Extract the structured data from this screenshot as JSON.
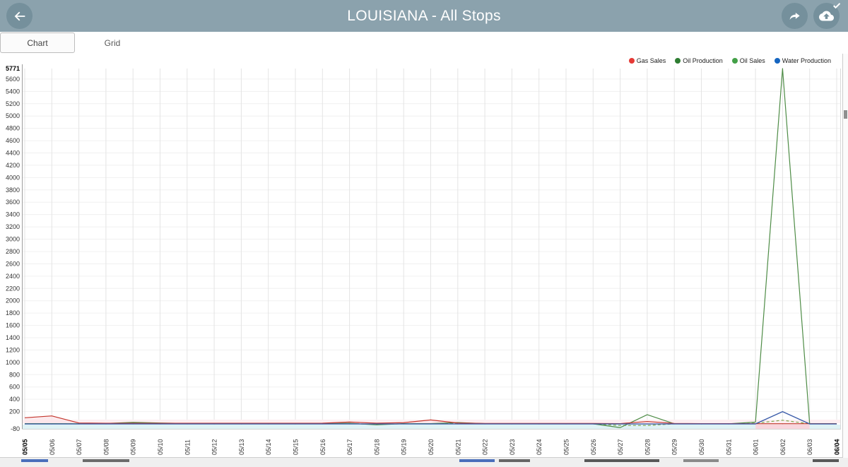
{
  "header": {
    "title": "LOUISIANA - All Stops",
    "bg_color": "#8ba2ad",
    "button_color": "#75909c",
    "icons": {
      "back": "arrow-left",
      "share": "forward-arrow",
      "upload": "cloud-upload-with-check"
    }
  },
  "tabs": [
    {
      "label": "Chart",
      "selected": true
    },
    {
      "label": "Grid",
      "selected": false
    }
  ],
  "legend": [
    {
      "label": "Gas Sales",
      "color": "#e53935"
    },
    {
      "label": "Oil Production",
      "color": "#2e7d32"
    },
    {
      "label": "Oil Sales",
      "color": "#43a047"
    },
    {
      "label": "Water Production",
      "color": "#1565c0"
    }
  ],
  "chart_data": {
    "type": "line",
    "title": "",
    "xlabel": "",
    "ylabel": "",
    "grid": true,
    "legend_position": "top-right",
    "ylim": [
      -80,
      5771
    ],
    "yticks": [
      -80,
      200,
      400,
      600,
      800,
      1000,
      1200,
      1400,
      1600,
      1800,
      2000,
      2200,
      2400,
      2600,
      2800,
      3000,
      3200,
      3400,
      3600,
      3800,
      4000,
      4200,
      4400,
      4600,
      4800,
      5000,
      5200,
      5400,
      5600,
      5771
    ],
    "bold_yticks": [
      5771
    ],
    "bold_xticks": [
      "05/05",
      "06/04"
    ],
    "x": [
      "05/05",
      "05/06",
      "05/07",
      "05/08",
      "05/09",
      "05/10",
      "05/11",
      "05/12",
      "05/13",
      "05/14",
      "05/15",
      "05/16",
      "05/17",
      "05/18",
      "05/19",
      "05/20",
      "05/21",
      "05/22",
      "05/23",
      "05/24",
      "05/25",
      "05/26",
      "05/27",
      "05/28",
      "05/29",
      "05/30",
      "05/31",
      "06/01",
      "06/02",
      "06/03",
      "06/04"
    ],
    "series": [
      {
        "name": "Gas Sales",
        "color": "#c4372e",
        "area_fill": "#fbe3e7",
        "values": [
          100,
          130,
          15,
          10,
          10,
          10,
          10,
          10,
          10,
          10,
          10,
          12,
          30,
          12,
          20,
          65,
          15,
          8,
          8,
          8,
          8,
          8,
          5,
          40,
          8,
          5,
          5,
          3,
          3,
          3,
          3
        ]
      },
      {
        "name": "Oil Production",
        "color": "#4e8c46",
        "values": [
          5,
          5,
          3,
          8,
          25,
          15,
          8,
          5,
          5,
          5,
          5,
          5,
          10,
          -15,
          5,
          5,
          22,
          5,
          2,
          2,
          2,
          2,
          -60,
          150,
          2,
          2,
          2,
          30,
          5771,
          5,
          5
        ]
      },
      {
        "name": "Oil Sales",
        "color": "#7fa84f",
        "dashed": true,
        "values": [
          3,
          3,
          2,
          5,
          15,
          8,
          5,
          3,
          3,
          3,
          3,
          3,
          6,
          -8,
          3,
          3,
          14,
          3,
          1,
          1,
          1,
          1,
          -25,
          -25,
          1,
          1,
          1,
          12,
          60,
          2,
          2
        ]
      },
      {
        "name": "Water Production",
        "color": "#3a5ba9",
        "band_fill": "#dff2f5",
        "values": [
          0,
          0,
          0,
          0,
          0,
          0,
          0,
          0,
          0,
          0,
          0,
          0,
          0,
          0,
          0,
          0,
          0,
          0,
          0,
          0,
          0,
          0,
          0,
          0,
          0,
          0,
          0,
          0,
          200,
          0,
          0
        ]
      }
    ],
    "annotations": {
      "peak_value": 5771,
      "peak_date": "06/02",
      "water_peak_value": 200,
      "water_peak_date": "06/02"
    }
  }
}
